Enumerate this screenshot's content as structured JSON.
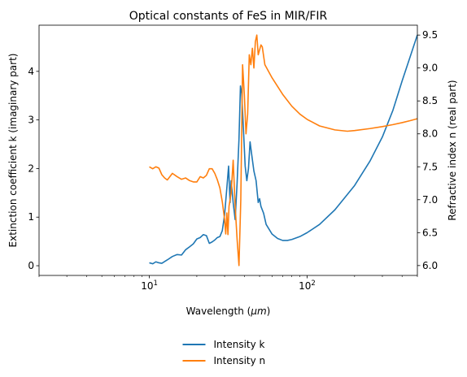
{
  "chart_data": {
    "type": "line",
    "title": "Optical constants of FeS in MIR/FIR",
    "xlabel": "Wavelength (",
    "xlabel_unit": "μm",
    "xlabel_close": ")",
    "ylabel_left": "Extinction coefficient k (imaginary part)",
    "ylabel_right": "Refractive index n (real part)",
    "xscale": "log",
    "xlim": [
      2,
      500
    ],
    "ylim_left": [
      -0.2,
      4.95
    ],
    "ylim_right": [
      5.85,
      9.65
    ],
    "x_ticks": [
      {
        "value": 10,
        "base": "10",
        "exp": "1"
      },
      {
        "value": 100,
        "base": "10",
        "exp": "2"
      }
    ],
    "y_ticks_left": [
      {
        "value": 0,
        "label": "0"
      },
      {
        "value": 1,
        "label": "1"
      },
      {
        "value": 2,
        "label": "2"
      },
      {
        "value": 3,
        "label": "3"
      },
      {
        "value": 4,
        "label": "4"
      }
    ],
    "y_ticks_right": [
      {
        "value": 6.0,
        "label": "6.0"
      },
      {
        "value": 6.5,
        "label": "6.5"
      },
      {
        "value": 7.0,
        "label": "7.0"
      },
      {
        "value": 7.5,
        "label": "7.5"
      },
      {
        "value": 8.0,
        "label": "8.0"
      },
      {
        "value": 8.5,
        "label": "8.5"
      },
      {
        "value": 9.0,
        "label": "9.0"
      },
      {
        "value": 9.5,
        "label": "9.5"
      }
    ],
    "legend_position": "bottom-center",
    "series": [
      {
        "name": "Intensity k",
        "axis": "left",
        "color": "#1f77b4",
        "points": [
          [
            10,
            0.06
          ],
          [
            10.5,
            0.04
          ],
          [
            11,
            0.08
          ],
          [
            11.5,
            0.06
          ],
          [
            12,
            0.05
          ],
          [
            13,
            0.12
          ],
          [
            14,
            0.19
          ],
          [
            15,
            0.23
          ],
          [
            16,
            0.22
          ],
          [
            17,
            0.33
          ],
          [
            18,
            0.39
          ],
          [
            19,
            0.45
          ],
          [
            20,
            0.55
          ],
          [
            21,
            0.58
          ],
          [
            22,
            0.64
          ],
          [
            23,
            0.62
          ],
          [
            24,
            0.46
          ],
          [
            25,
            0.49
          ],
          [
            26,
            0.53
          ],
          [
            27,
            0.58
          ],
          [
            28,
            0.6
          ],
          [
            29,
            0.72
          ],
          [
            30,
            1.05
          ],
          [
            31,
            1.6
          ],
          [
            31.8,
            2.05
          ],
          [
            32.5,
            1.3
          ],
          [
            33,
            1.75
          ],
          [
            34,
            1.3
          ],
          [
            35,
            0.95
          ],
          [
            36,
            1.7
          ],
          [
            37,
            2.6
          ],
          [
            37.8,
            3.7
          ],
          [
            38.5,
            3.55
          ],
          [
            39.5,
            2.8
          ],
          [
            40.5,
            2.05
          ],
          [
            41.5,
            1.75
          ],
          [
            42.5,
            2.0
          ],
          [
            43.5,
            2.55
          ],
          [
            44.5,
            2.3
          ],
          [
            46,
            1.95
          ],
          [
            47.5,
            1.75
          ],
          [
            49,
            1.3
          ],
          [
            50,
            1.38
          ],
          [
            51,
            1.22
          ],
          [
            53,
            1.08
          ],
          [
            55,
            0.85
          ],
          [
            60,
            0.65
          ],
          [
            65,
            0.56
          ],
          [
            70,
            0.52
          ],
          [
            75,
            0.52
          ],
          [
            80,
            0.54
          ],
          [
            90,
            0.6
          ],
          [
            100,
            0.68
          ],
          [
            120,
            0.85
          ],
          [
            150,
            1.15
          ],
          [
            200,
            1.65
          ],
          [
            250,
            2.15
          ],
          [
            300,
            2.65
          ],
          [
            350,
            3.2
          ],
          [
            400,
            3.8
          ],
          [
            450,
            4.3
          ],
          [
            500,
            4.75
          ]
        ]
      },
      {
        "name": "Intensity n",
        "axis": "right",
        "color": "#ff7f0e",
        "points": [
          [
            10,
            7.5
          ],
          [
            10.5,
            7.47
          ],
          [
            11,
            7.5
          ],
          [
            11.5,
            7.48
          ],
          [
            12,
            7.38
          ],
          [
            12.5,
            7.33
          ],
          [
            13,
            7.3
          ],
          [
            13.5,
            7.35
          ],
          [
            14,
            7.4
          ],
          [
            15,
            7.35
          ],
          [
            16,
            7.31
          ],
          [
            17,
            7.33
          ],
          [
            18,
            7.29
          ],
          [
            19,
            7.27
          ],
          [
            20,
            7.27
          ],
          [
            21,
            7.35
          ],
          [
            22,
            7.33
          ],
          [
            23,
            7.37
          ],
          [
            24,
            7.47
          ],
          [
            25,
            7.47
          ],
          [
            26,
            7.4
          ],
          [
            27,
            7.3
          ],
          [
            28,
            7.18
          ],
          [
            29,
            6.97
          ],
          [
            30,
            6.7
          ],
          [
            30.5,
            6.48
          ],
          [
            31,
            6.8
          ],
          [
            31.5,
            6.47
          ],
          [
            32,
            6.9
          ],
          [
            33,
            7.1
          ],
          [
            34,
            7.6
          ],
          [
            35,
            6.9
          ],
          [
            36,
            6.4
          ],
          [
            37,
            6.0
          ],
          [
            38,
            7.0
          ],
          [
            39,
            9.05
          ],
          [
            40,
            8.6
          ],
          [
            41,
            8.0
          ],
          [
            42,
            8.3
          ],
          [
            43,
            9.2
          ],
          [
            44,
            9.05
          ],
          [
            45,
            9.3
          ],
          [
            46,
            9.0
          ],
          [
            47,
            9.4
          ],
          [
            48,
            9.5
          ],
          [
            49,
            9.2
          ],
          [
            51,
            9.35
          ],
          [
            52,
            9.32
          ],
          [
            54,
            9.05
          ],
          [
            60,
            8.85
          ],
          [
            70,
            8.6
          ],
          [
            80,
            8.42
          ],
          [
            90,
            8.3
          ],
          [
            100,
            8.22
          ],
          [
            120,
            8.12
          ],
          [
            150,
            8.06
          ],
          [
            180,
            8.04
          ],
          [
            200,
            8.05
          ],
          [
            250,
            8.08
          ],
          [
            300,
            8.11
          ],
          [
            350,
            8.14
          ],
          [
            400,
            8.17
          ],
          [
            450,
            8.2
          ],
          [
            500,
            8.23
          ]
        ]
      }
    ]
  }
}
